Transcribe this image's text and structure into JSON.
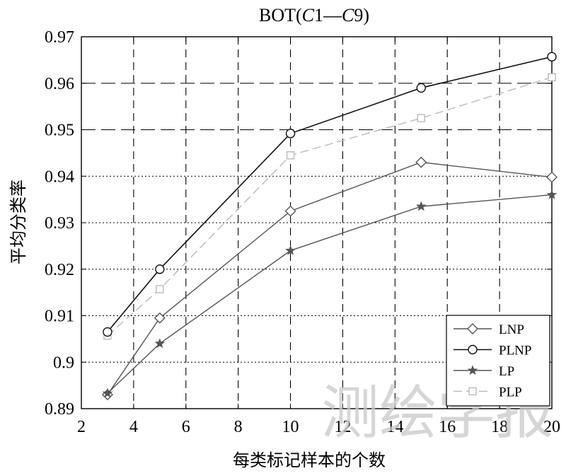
{
  "chart_data": {
    "type": "line",
    "title_parts": [
      "BOT(",
      "C",
      "1—",
      "C",
      "9)"
    ],
    "xlabel": "每类标记样本的个数",
    "ylabel": "平均分类率",
    "xlim": [
      2,
      20
    ],
    "ylim": [
      0.89,
      0.97
    ],
    "xticks": [
      2,
      4,
      6,
      8,
      10,
      12,
      14,
      16,
      18,
      20
    ],
    "yticks": [
      0.89,
      0.9,
      0.91,
      0.92,
      0.93,
      0.94,
      0.95,
      0.96,
      0.97
    ],
    "ytick_labels": [
      "0.89",
      "0.9",
      "0.91",
      "0.92",
      "0.93",
      "0.94",
      "0.95",
      "0.96",
      "0.97"
    ],
    "grid": "on",
    "legend_position": "bottom-right",
    "x": [
      3,
      5,
      10,
      15,
      20
    ],
    "series": [
      {
        "name": "LNP",
        "values": [
          0.893,
          0.9095,
          0.9325,
          0.943,
          0.9398
        ],
        "color": "#555555",
        "marker": "diamond",
        "line": "solid"
      },
      {
        "name": "PLNP",
        "values": [
          0.9065,
          0.92,
          0.9492,
          0.959,
          0.9657
        ],
        "color": "#111111",
        "marker": "circle",
        "line": "solid"
      },
      {
        "name": "LP",
        "values": [
          0.8933,
          0.904,
          0.924,
          0.9335,
          0.936
        ],
        "color": "#555555",
        "marker": "star",
        "line": "solid"
      },
      {
        "name": "PLP",
        "values": [
          0.9057,
          0.9157,
          0.9445,
          0.9525,
          0.9613
        ],
        "color": "#bbbbbb",
        "marker": "square",
        "line": "dashed"
      }
    ]
  },
  "watermark": "测绘学报"
}
